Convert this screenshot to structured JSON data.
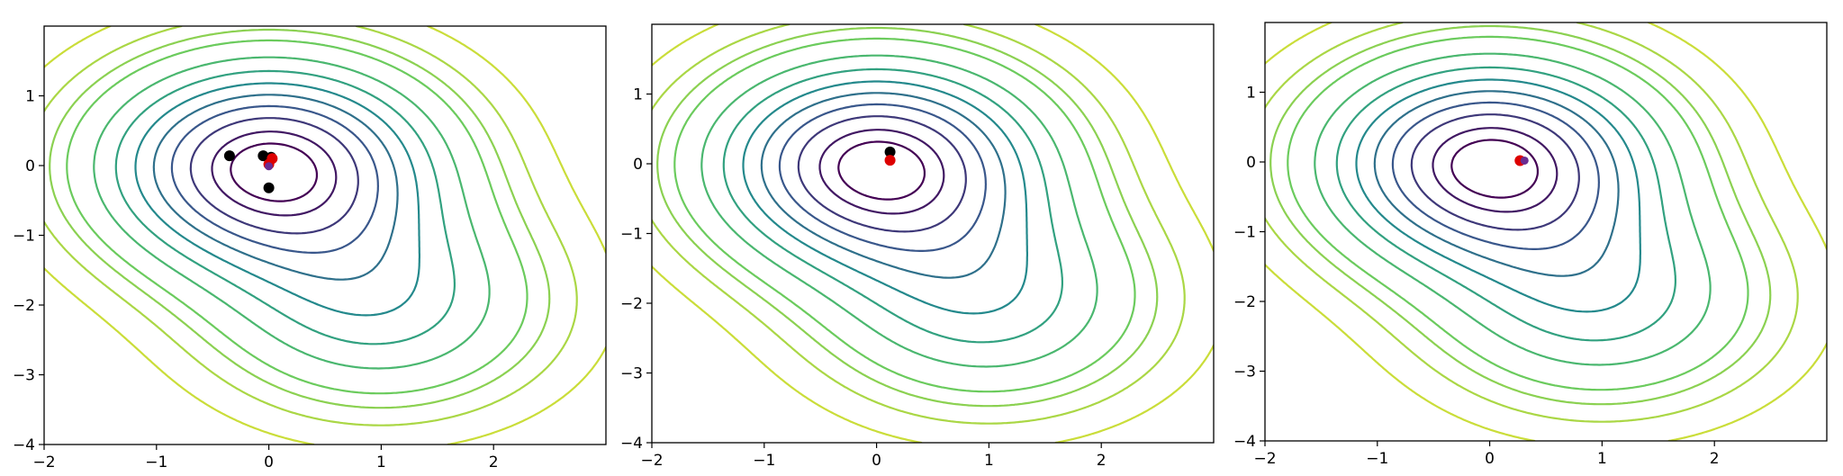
{
  "chart_data": [
    {
      "type": "contour",
      "xlim": [
        -2,
        3
      ],
      "ylim": [
        -4,
        2
      ],
      "x_ticks": [
        -2,
        -1,
        0,
        1,
        2
      ],
      "y_ticks": [
        -4,
        -3,
        -2,
        -1,
        0,
        1
      ],
      "x_tick_labels": [
        "−2",
        "−1",
        "0",
        "1",
        "2"
      ],
      "y_tick_labels": [
        "−4",
        "−3",
        "−2",
        "−1",
        "0",
        "1"
      ],
      "grid": false,
      "contour_levels": [
        0.05,
        0.1,
        0.15,
        0.2,
        0.3,
        0.4,
        0.5,
        0.6,
        0.7,
        0.8,
        0.9,
        0.97
      ],
      "colormap": "viridis",
      "points_black": [
        [
          -0.35,
          0.14
        ],
        [
          -0.05,
          0.14
        ],
        [
          0.0,
          -0.32
        ],
        [
          0.02,
          0.12
        ]
      ],
      "points_red": [
        [
          0.03,
          0.1
        ],
        [
          0.0,
          0.02
        ]
      ],
      "points_purple": [
        [
          0.0,
          -0.01
        ]
      ]
    },
    {
      "type": "contour",
      "xlim": [
        -2,
        3
      ],
      "ylim": [
        -4,
        2
      ],
      "x_ticks": [
        -2,
        -1,
        0,
        1,
        2
      ],
      "y_ticks": [
        -4,
        -3,
        -2,
        -1,
        0,
        1
      ],
      "x_tick_labels": [
        "−2",
        "−1",
        "0",
        "1",
        "2"
      ],
      "y_tick_labels": [
        "−4",
        "−3",
        "−2",
        "−1",
        "0",
        "1"
      ],
      "grid": false,
      "contour_levels": [
        0.05,
        0.1,
        0.15,
        0.2,
        0.3,
        0.4,
        0.5,
        0.6,
        0.7,
        0.8,
        0.9,
        0.97
      ],
      "colormap": "viridis",
      "points_black": [
        [
          0.12,
          0.17
        ]
      ],
      "points_red": [
        [
          0.12,
          0.05
        ]
      ],
      "points_purple": []
    },
    {
      "type": "contour",
      "xlim": [
        -2,
        3
      ],
      "ylim": [
        -4,
        2
      ],
      "x_ticks": [
        -2,
        -1,
        0,
        1,
        2
      ],
      "y_ticks": [
        -4,
        -3,
        -2,
        -1,
        0,
        1
      ],
      "x_tick_labels": [
        "−2",
        "−1",
        "0",
        "1",
        "2"
      ],
      "y_tick_labels": [
        "−4",
        "−3",
        "−2",
        "−1",
        "0",
        "1"
      ],
      "grid": false,
      "contour_levels": [
        0.05,
        0.1,
        0.15,
        0.2,
        0.3,
        0.4,
        0.5,
        0.6,
        0.7,
        0.8,
        0.9,
        0.97
      ],
      "colormap": "viridis",
      "points_black": [],
      "points_red": [
        [
          0.27,
          0.02
        ]
      ],
      "points_purple": [
        [
          0.31,
          0.02
        ]
      ]
    }
  ]
}
